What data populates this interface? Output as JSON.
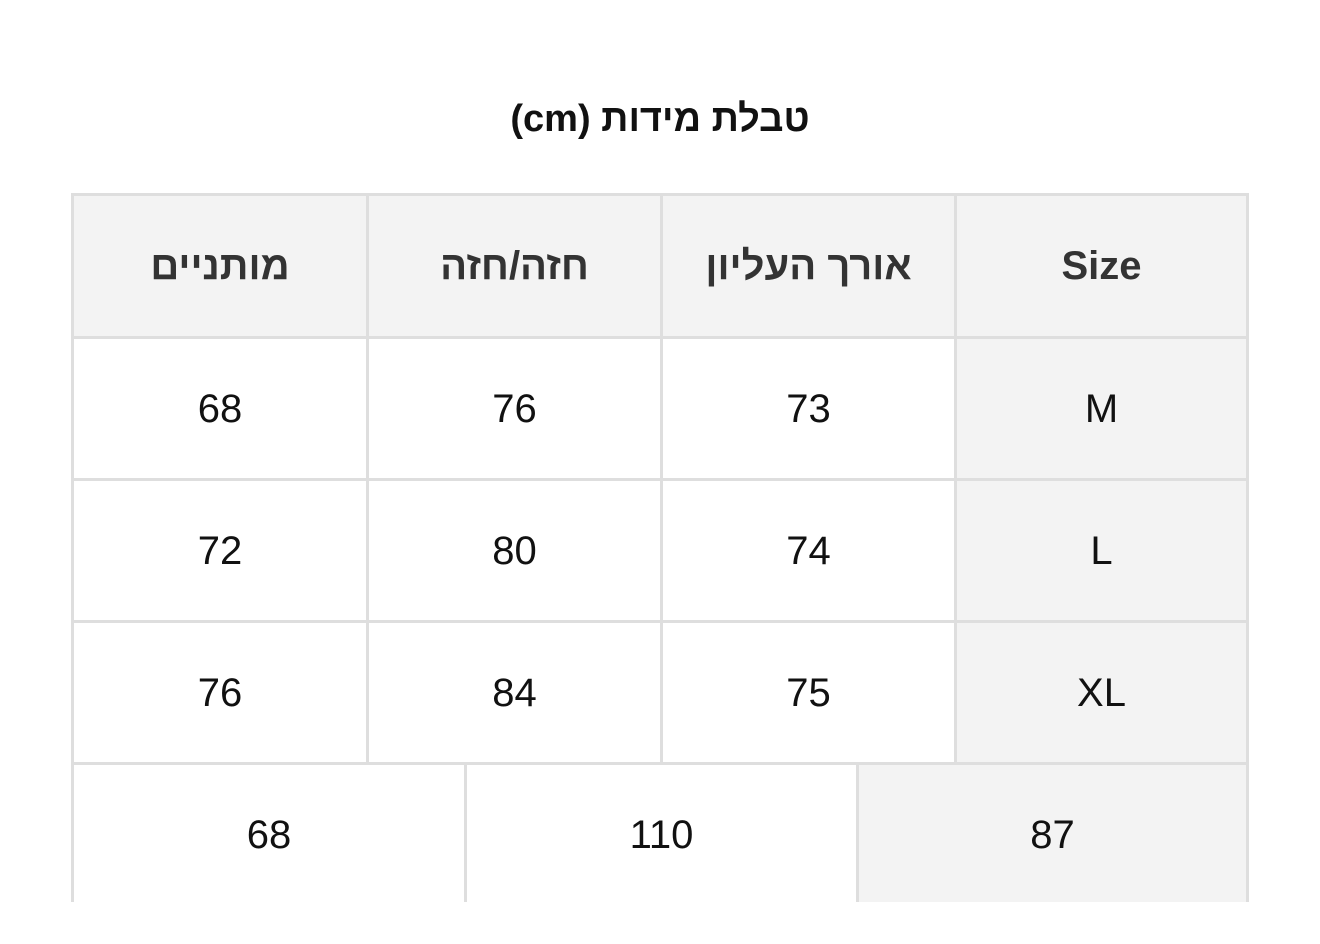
{
  "title": "טבלת מידות (cm)",
  "table": {
    "headers": [
      "Size",
      "אורך העליון",
      "חזה/חזה",
      "מותניים"
    ],
    "rows": [
      [
        "M",
        "73",
        "76",
        "68"
      ],
      [
        "L",
        "74",
        "80",
        "72"
      ],
      [
        "XL",
        "75",
        "84",
        "76"
      ]
    ],
    "extra_row": [
      "87",
      "110",
      "68"
    ]
  }
}
